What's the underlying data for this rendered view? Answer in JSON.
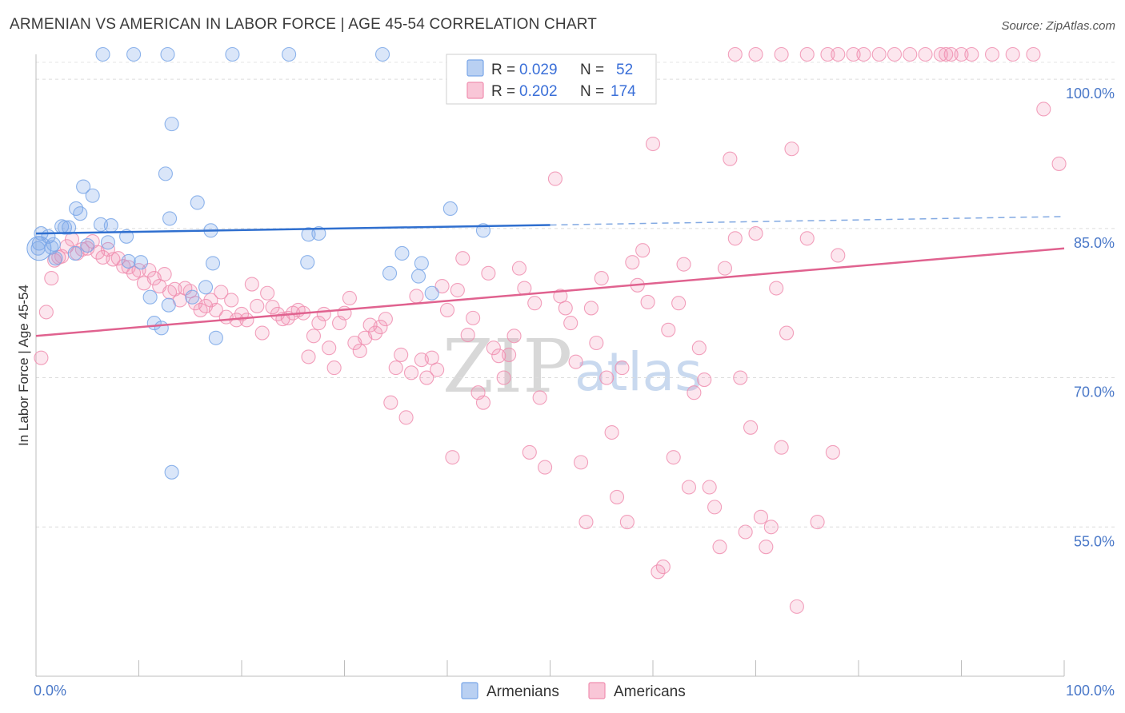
{
  "header": {
    "title": "ARMENIAN VS AMERICAN IN LABOR FORCE | AGE 45-54 CORRELATION CHART",
    "source": "Source: ZipAtlas.com"
  },
  "watermark": {
    "zip": "ZIP",
    "atlas": "atlas"
  },
  "legend_top": [
    {
      "r_label": "R =",
      "r_value": "0.029",
      "n_label": "N =",
      "n_value": "52",
      "color": "#7aa7e8"
    },
    {
      "r_label": "R =",
      "r_value": "0.202",
      "n_label": "N =",
      "n_value": "174",
      "color": "#f08fb0"
    }
  ],
  "chart_data": {
    "type": "scatter",
    "title": "ARMENIAN VS AMERICAN IN LABOR FORCE | AGE 45-54 CORRELATION CHART",
    "xlabel": "",
    "ylabel": "In Labor Force | Age 45-54",
    "xlim": [
      0,
      100
    ],
    "ylim": [
      40,
      102.5
    ],
    "x_tick_labels": [
      "0.0%",
      "100.0%"
    ],
    "y_ticks": [
      55,
      70,
      85,
      100
    ],
    "y_tick_labels": [
      "55.0%",
      "70.0%",
      "85.0%",
      "100.0%"
    ],
    "grid": "horizontal dashed",
    "legend_position": "top-center",
    "series": [
      {
        "name": "Armenians",
        "color": "#7aa7e8",
        "trend": {
          "x0": 0,
          "y0": 84.5,
          "x1": 100,
          "y1": 86.2,
          "solid_until_x": 50
        },
        "points": [
          [
            0.3,
            83.5
          ],
          [
            0.5,
            84.5
          ],
          [
            1.2,
            84.2
          ],
          [
            1.5,
            83.1
          ],
          [
            1.7,
            83.4
          ],
          [
            1.9,
            82.0
          ],
          [
            2.5,
            85.2
          ],
          [
            2.8,
            85.1
          ],
          [
            3.2,
            85.1
          ],
          [
            3.8,
            82.5
          ],
          [
            3.9,
            87.0
          ],
          [
            4.3,
            86.5
          ],
          [
            4.6,
            89.2
          ],
          [
            5.0,
            83.3
          ],
          [
            5.5,
            88.3
          ],
          [
            6.3,
            85.4
          ],
          [
            6.5,
            102.5
          ],
          [
            7.3,
            85.3
          ],
          [
            7.0,
            83.6
          ],
          [
            8.8,
            84.2
          ],
          [
            9.0,
            81.7
          ],
          [
            10.2,
            81.6
          ],
          [
            11.1,
            78.1
          ],
          [
            12.2,
            75.0
          ],
          [
            11.5,
            75.5
          ],
          [
            12.6,
            90.5
          ],
          [
            12.9,
            77.3
          ],
          [
            13.2,
            60.5
          ],
          [
            12.8,
            102.5
          ],
          [
            13.0,
            86.0
          ],
          [
            13.2,
            95.5
          ],
          [
            15.2,
            78.1
          ],
          [
            15.7,
            87.6
          ],
          [
            16.5,
            79.1
          ],
          [
            17.0,
            84.8
          ],
          [
            17.2,
            81.5
          ],
          [
            17.5,
            74.0
          ],
          [
            19.1,
            102.5
          ],
          [
            24.6,
            102.5
          ],
          [
            26.4,
            81.6
          ],
          [
            26.5,
            84.4
          ],
          [
            27.5,
            84.5
          ],
          [
            33.7,
            102.5
          ],
          [
            34.4,
            80.5
          ],
          [
            35.6,
            82.5
          ],
          [
            37.2,
            80.2
          ],
          [
            37.5,
            81.5
          ],
          [
            38.5,
            78.5
          ],
          [
            40.3,
            87.0
          ],
          [
            43.5,
            84.8
          ],
          [
            9.5,
            102.5
          ],
          [
            0.2,
            83.0
          ]
        ]
      },
      {
        "name": "Americans",
        "color": "#f08fb0",
        "trend": {
          "x0": 0,
          "y0": 74.2,
          "x1": 100,
          "y1": 83.0,
          "solid_until_x": 100
        },
        "points": [
          [
            0.5,
            72.0
          ],
          [
            1.0,
            76.6
          ],
          [
            1.5,
            80.0
          ],
          [
            1.8,
            81.8
          ],
          [
            2.2,
            82.1
          ],
          [
            2.5,
            82.2
          ],
          [
            3.0,
            83.2
          ],
          [
            3.5,
            83.9
          ],
          [
            4.0,
            82.5
          ],
          [
            4.5,
            82.9
          ],
          [
            5.0,
            83.0
          ],
          [
            5.5,
            83.7
          ],
          [
            6.0,
            82.6
          ],
          [
            6.5,
            82.1
          ],
          [
            7.0,
            82.9
          ],
          [
            7.5,
            81.9
          ],
          [
            8.0,
            82.0
          ],
          [
            8.5,
            81.2
          ],
          [
            9.0,
            81.1
          ],
          [
            9.5,
            80.5
          ],
          [
            10.0,
            80.8
          ],
          [
            10.5,
            79.5
          ],
          [
            11.0,
            80.8
          ],
          [
            11.5,
            80.0
          ],
          [
            12.0,
            79.2
          ],
          [
            12.5,
            80.4
          ],
          [
            13.0,
            78.6
          ],
          [
            13.5,
            78.9
          ],
          [
            14.0,
            77.8
          ],
          [
            14.5,
            79.0
          ],
          [
            15.0,
            78.7
          ],
          [
            15.5,
            77.5
          ],
          [
            16.0,
            76.8
          ],
          [
            16.5,
            77.2
          ],
          [
            17.0,
            77.8
          ],
          [
            17.5,
            76.8
          ],
          [
            18.0,
            78.6
          ],
          [
            18.5,
            76.1
          ],
          [
            19.0,
            77.8
          ],
          [
            19.5,
            75.8
          ],
          [
            20.0,
            76.4
          ],
          [
            20.5,
            75.8
          ],
          [
            21.0,
            79.4
          ],
          [
            21.5,
            77.2
          ],
          [
            22.0,
            74.5
          ],
          [
            22.5,
            78.5
          ],
          [
            23.0,
            77.1
          ],
          [
            23.5,
            76.4
          ],
          [
            24.0,
            75.9
          ],
          [
            24.5,
            76.0
          ],
          [
            25.0,
            76.5
          ],
          [
            25.5,
            76.8
          ],
          [
            26.0,
            76.5
          ],
          [
            26.5,
            72.1
          ],
          [
            27.0,
            74.2
          ],
          [
            27.5,
            75.5
          ],
          [
            28.0,
            76.4
          ],
          [
            28.5,
            73.0
          ],
          [
            29.0,
            71.0
          ],
          [
            29.5,
            75.5
          ],
          [
            30.0,
            76.5
          ],
          [
            30.5,
            78.0
          ],
          [
            31.0,
            73.5
          ],
          [
            31.5,
            72.7
          ],
          [
            32.0,
            74.0
          ],
          [
            32.5,
            75.3
          ],
          [
            33.0,
            74.5
          ],
          [
            33.5,
            75.1
          ],
          [
            34.0,
            75.9
          ],
          [
            34.5,
            67.5
          ],
          [
            35.0,
            71.0
          ],
          [
            35.5,
            72.3
          ],
          [
            36.0,
            66.0
          ],
          [
            36.5,
            70.5
          ],
          [
            37.0,
            78.2
          ],
          [
            37.5,
            71.8
          ],
          [
            38.0,
            70.0
          ],
          [
            38.5,
            72.0
          ],
          [
            39.0,
            70.8
          ],
          [
            39.5,
            79.2
          ],
          [
            40.0,
            76.8
          ],
          [
            40.5,
            62.0
          ],
          [
            41.0,
            78.8
          ],
          [
            41.5,
            82.0
          ],
          [
            42.0,
            74.3
          ],
          [
            42.5,
            76.0
          ],
          [
            43.0,
            68.5
          ],
          [
            43.5,
            67.5
          ],
          [
            44.0,
            80.5
          ],
          [
            44.5,
            73.0
          ],
          [
            45.0,
            72.2
          ],
          [
            45.5,
            70.0
          ],
          [
            46.0,
            72.3
          ],
          [
            46.5,
            74.2
          ],
          [
            47.0,
            81.0
          ],
          [
            47.5,
            79.0
          ],
          [
            48.0,
            62.5
          ],
          [
            48.5,
            77.5
          ],
          [
            49.0,
            68.0
          ],
          [
            49.5,
            61.0
          ],
          [
            50.5,
            90.0
          ],
          [
            51.0,
            78.2
          ],
          [
            51.5,
            77.0
          ],
          [
            52.0,
            75.5
          ],
          [
            52.5,
            71.6
          ],
          [
            53.0,
            61.5
          ],
          [
            53.5,
            55.5
          ],
          [
            54.0,
            77.0
          ],
          [
            54.5,
            73.5
          ],
          [
            55.0,
            80.0
          ],
          [
            55.5,
            70.0
          ],
          [
            56.0,
            64.5
          ],
          [
            56.5,
            58.0
          ],
          [
            57.0,
            71.0
          ],
          [
            57.5,
            55.5
          ],
          [
            58.0,
            81.6
          ],
          [
            58.5,
            79.3
          ],
          [
            59.0,
            82.8
          ],
          [
            59.5,
            77.6
          ],
          [
            60.0,
            93.5
          ],
          [
            60.5,
            50.5
          ],
          [
            61.0,
            51.0
          ],
          [
            61.5,
            74.8
          ],
          [
            62.0,
            62.0
          ],
          [
            62.5,
            77.5
          ],
          [
            63.0,
            81.4
          ],
          [
            63.5,
            59.0
          ],
          [
            64.0,
            68.5
          ],
          [
            64.5,
            73.0
          ],
          [
            65.0,
            69.8
          ],
          [
            65.5,
            59.0
          ],
          [
            66.0,
            57.0
          ],
          [
            66.5,
            53.0
          ],
          [
            67.0,
            81.0
          ],
          [
            67.5,
            92.0
          ],
          [
            68.0,
            84.0
          ],
          [
            68.5,
            70.0
          ],
          [
            69.0,
            54.5
          ],
          [
            69.5,
            65.0
          ],
          [
            70.0,
            84.5
          ],
          [
            70.5,
            56.0
          ],
          [
            71.0,
            53.0
          ],
          [
            71.5,
            55.0
          ],
          [
            72.0,
            79.0
          ],
          [
            72.5,
            63.0
          ],
          [
            73.0,
            74.5
          ],
          [
            73.5,
            93.0
          ],
          [
            74.0,
            47.0
          ],
          [
            75.0,
            84.0
          ],
          [
            76.0,
            55.5
          ],
          [
            77.5,
            62.5
          ],
          [
            78.0,
            82.3
          ],
          [
            68.0,
            102.5
          ],
          [
            70.0,
            102.5
          ],
          [
            72.5,
            102.5
          ],
          [
            75.0,
            102.5
          ],
          [
            77.0,
            102.5
          ],
          [
            78.0,
            102.5
          ],
          [
            79.5,
            102.5
          ],
          [
            80.5,
            102.5
          ],
          [
            82.0,
            102.5
          ],
          [
            83.5,
            102.5
          ],
          [
            85.0,
            102.5
          ],
          [
            86.5,
            102.5
          ],
          [
            88.0,
            102.5
          ],
          [
            89.0,
            102.5
          ],
          [
            90.0,
            102.5
          ],
          [
            91.0,
            102.5
          ],
          [
            93.0,
            102.5
          ],
          [
            95.0,
            102.5
          ],
          [
            97.0,
            102.5
          ],
          [
            98.0,
            97.0
          ],
          [
            99.5,
            91.5
          ],
          [
            88.5,
            102.5
          ]
        ]
      }
    ]
  },
  "legend_bottom": [
    {
      "label": "Armenians",
      "color": "#7aa7e8"
    },
    {
      "label": "Americans",
      "color": "#f08fb0"
    }
  ]
}
